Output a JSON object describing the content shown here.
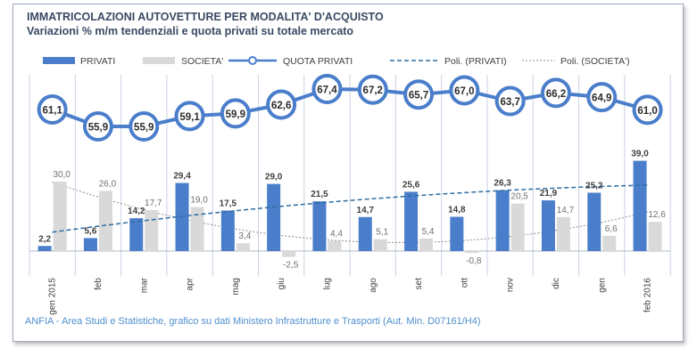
{
  "title": "IMMATRICOLAZIONI AUTOVETTURE PER MODALITA' D'ACQUISTO",
  "subtitle": "Variazioni % m/m tendenziali e quota privati su totale mercato",
  "footer": "ANFIA - Area Studi e Statistiche, grafico su dati Ministero Infrastrutture e Trasporti (Aut. Min. D07161/H4)",
  "colors": {
    "privati": "#4a7ecb",
    "societa": "#d9d9d9",
    "quota_line": "#4a7ecb",
    "quota_fill": "#ffffff",
    "trend_privati": "#2f6da3",
    "trend_societa": "#8c8c8c",
    "grid": "#c8d3e3",
    "label": "#404040"
  },
  "chart_data": {
    "type": "bar",
    "categories": [
      "gen 2015",
      "feb",
      "mar",
      "apr",
      "mag",
      "giu",
      "lug",
      "ago",
      "set",
      "ott",
      "nov",
      "dic",
      "gen",
      "feb 2016"
    ],
    "series": [
      {
        "name": "PRIVATI",
        "type": "bar",
        "values": [
          2.2,
          5.6,
          14.2,
          29.4,
          17.5,
          29.0,
          21.5,
          14.7,
          25.6,
          14.8,
          26.3,
          21.9,
          25.2,
          39.0
        ]
      },
      {
        "name": "SOCIETA'",
        "type": "bar",
        "values": [
          30.0,
          26.0,
          17.7,
          19.0,
          3.4,
          -2.5,
          4.4,
          5.1,
          5.4,
          -0.8,
          20.5,
          14.7,
          6.6,
          12.6
        ]
      },
      {
        "name": "QUOTA PRIVATI",
        "type": "line",
        "values": [
          61.1,
          55.9,
          55.9,
          59.1,
          59.9,
          62.6,
          67.4,
          67.2,
          65.7,
          67.0,
          63.7,
          66.2,
          64.9,
          61.0
        ]
      },
      {
        "name": "Poli. (PRIVATI)",
        "type": "trendline"
      },
      {
        "name": "Poli. (SOCIETA')",
        "type": "trendline"
      }
    ],
    "value_labels": {
      "privati": [
        "2,2",
        "5,6",
        "14,2",
        "29,4",
        "17,5",
        "29,0",
        "21,5",
        "14,7",
        "25,6",
        "14,8",
        "26,3",
        "21,9",
        "25,2",
        "39,0"
      ],
      "societa": [
        "30,0",
        "26,0",
        "17,7",
        "19,0",
        "3,4",
        "-2,5",
        "4,4",
        "5,1",
        "5,4",
        "-0,8",
        "20,5",
        "14,7",
        "6,6",
        "12,6"
      ],
      "quota": [
        "61,1",
        "55,9",
        "55,9",
        "59,1",
        "59,9",
        "62,6",
        "67,4",
        "67,2",
        "65,7",
        "67,0",
        "63,7",
        "66,2",
        "64,9",
        "61,0"
      ]
    },
    "legend_position": "top",
    "grid": "vertical"
  }
}
